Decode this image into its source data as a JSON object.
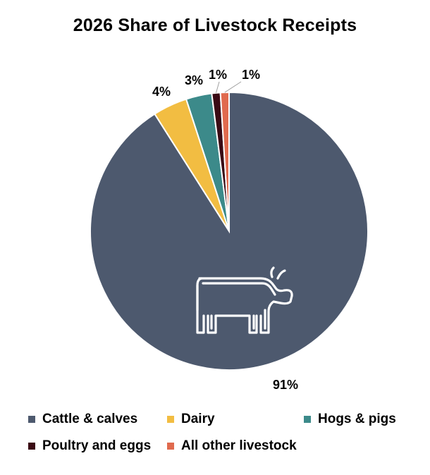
{
  "chart_data": {
    "type": "pie",
    "title": "2026 Share of Livestock Receipts",
    "categories": [
      "Cattle & calves",
      "Dairy",
      "Hogs & pigs",
      "Poultry and eggs",
      "All other livestock"
    ],
    "values": [
      91,
      4,
      3,
      1,
      1
    ],
    "data_labels": [
      "91%",
      "4%",
      "3%",
      "1%",
      "1%"
    ],
    "colors": [
      "#4d596e",
      "#f2bd42",
      "#3c8a8a",
      "#3a0a14",
      "#e06a4e"
    ],
    "legend": "bottom",
    "icon": "cow-icon"
  }
}
